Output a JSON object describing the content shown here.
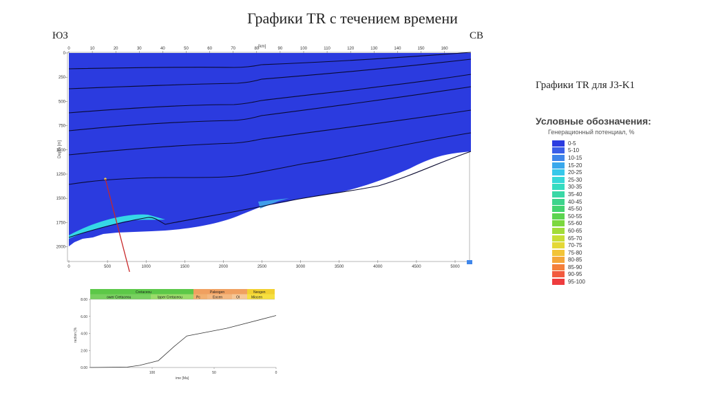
{
  "slide": {
    "title": "Графики TR с течением времени",
    "sw_label": "ЮЗ",
    "ne_label": "СВ",
    "j3_title": "Графики TR для J3-K1"
  },
  "cross_section": {
    "top_axis_unit": "[km]",
    "top_ticks": [
      "0",
      "10",
      "20",
      "30",
      "40",
      "50",
      "60",
      "70",
      "80",
      "90",
      "100",
      "110",
      "120",
      "130",
      "140",
      "150",
      "160"
    ],
    "depth_label": "Depth [m]",
    "depth_ticks": [
      "0",
      "250",
      "500",
      "750",
      "1000",
      "1250",
      "1500",
      "1750",
      "2000"
    ],
    "bottom_ticks": [
      "0",
      "500",
      "1000",
      "1500",
      "2000",
      "2500",
      "3000",
      "3500",
      "4000",
      "4500",
      "5000"
    ],
    "fill_color": "#2b3bdf",
    "highlight_color": "#35d8e6"
  },
  "tr_chart": {
    "periods": [
      "Cretaceou",
      "Paleogen",
      "Neogen"
    ],
    "epochs": [
      "ower Cretaceou",
      "Ipper Cretaceou",
      "Pc",
      "Eocen",
      "Ol",
      "Miocen"
    ],
    "ylabel": "raction [%",
    "y_ticks": [
      "0.00",
      "2.00",
      "4.00",
      "6.00",
      "8.00"
    ],
    "xlabel": "ime [Ma]",
    "x_ticks": [
      "100",
      "50",
      "0"
    ]
  },
  "chart_data": {
    "type": "line",
    "title": "",
    "xlabel": "ime [Ma]",
    "ylabel": "raction [%",
    "xlim": [
      150,
      0
    ],
    "ylim": [
      0,
      8
    ],
    "x": [
      150,
      120,
      110,
      95,
      82,
      72,
      40,
      0
    ],
    "y": [
      0.0,
      0.05,
      0.25,
      0.8,
      2.5,
      3.7,
      4.6,
      6.1
    ]
  },
  "legend": {
    "title": "Условные обозначения:",
    "subtitle": "Генерационный потенциал, %",
    "items": [
      {
        "label": "0-5",
        "color": "#2b3be0"
      },
      {
        "label": "5-10",
        "color": "#3a5ee8"
      },
      {
        "label": "10-15",
        "color": "#3f86ea"
      },
      {
        "label": "15-20",
        "color": "#3aa8ec"
      },
      {
        "label": "20-25",
        "color": "#36c8ea"
      },
      {
        "label": "25-30",
        "color": "#35d8d8"
      },
      {
        "label": "30-35",
        "color": "#35dcc0"
      },
      {
        "label": "35-40",
        "color": "#3ad8a6"
      },
      {
        "label": "40-45",
        "color": "#3ed48c"
      },
      {
        "label": "45-50",
        "color": "#44d470"
      },
      {
        "label": "50-55",
        "color": "#5cd450"
      },
      {
        "label": "55-60",
        "color": "#7cd83e"
      },
      {
        "label": "60-65",
        "color": "#a2dc3a"
      },
      {
        "label": "65-70",
        "color": "#c8de36"
      },
      {
        "label": "70-75",
        "color": "#e4d836"
      },
      {
        "label": "75-80",
        "color": "#f2c438"
      },
      {
        "label": "80-85",
        "color": "#f4a63a"
      },
      {
        "label": "85-90",
        "color": "#f4803c"
      },
      {
        "label": "90-95",
        "color": "#f25a3e"
      },
      {
        "label": "95-100",
        "color": "#ee3c3e"
      }
    ]
  }
}
